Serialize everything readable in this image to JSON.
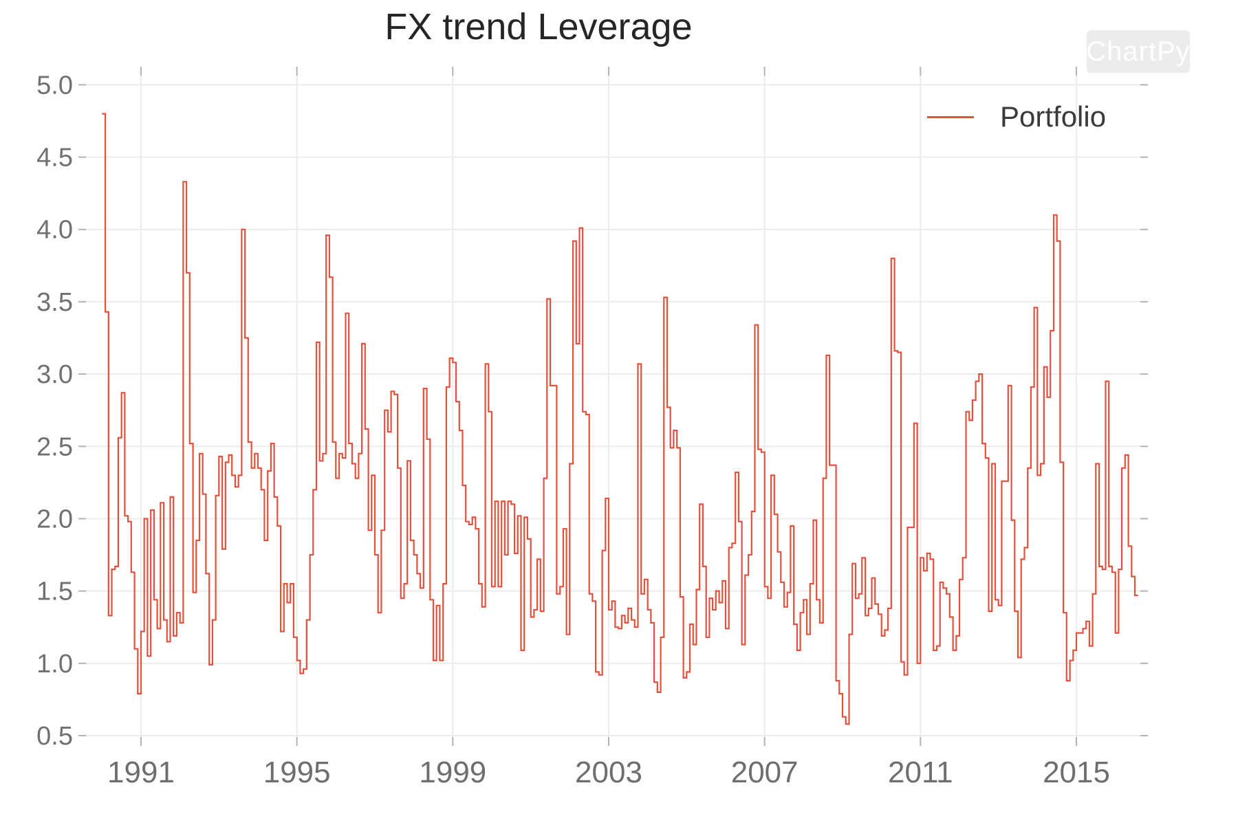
{
  "chart_data": {
    "type": "line",
    "line_style": "step-post",
    "title": "FX trend Leverage",
    "watermark": "ChartPy",
    "grid": true,
    "legend": {
      "position": "top-right",
      "label": "Portfolio"
    },
    "theme": {
      "background": "#ffffff",
      "line_color": "#E3503C",
      "grid_color": "#ececec",
      "tick_color": "#b3b3b3",
      "ytick_label_color": "#707070",
      "xtick_label_color": "#6e6e6e",
      "title_color": "#262626",
      "legend_text_color": "#3a3a3a",
      "watermark_bg": "#ececec",
      "watermark_text_color": "#ffffff"
    },
    "x_axis": {
      "ticks": [
        1991,
        1995,
        1999,
        2003,
        2007,
        2011,
        2015
      ],
      "tick_labels": [
        "1991",
        "1995",
        "1999",
        "2003",
        "2007",
        "2011",
        "2015"
      ],
      "range_years": [
        1989.59,
        2016.64
      ]
    },
    "y_axis": {
      "ticks": [
        0.5,
        1.0,
        1.5,
        2.0,
        2.5,
        3.0,
        3.5,
        4.0,
        4.5,
        5.0
      ],
      "tick_labels": [
        "0.5",
        "1.0",
        "1.5",
        "2.0",
        "2.5",
        "3.0",
        "3.5",
        "4.0",
        "4.5",
        "5.0"
      ],
      "range": [
        0.43,
        5.06
      ]
    },
    "series": [
      {
        "name": "Portfolio",
        "color": "#E3503C",
        "start_year": 1990.0,
        "interval_years": 0.0833333,
        "values": [
          4.8,
          3.43,
          1.33,
          1.65,
          1.67,
          2.56,
          2.87,
          2.02,
          1.98,
          1.63,
          1.1,
          0.79,
          1.22,
          2.0,
          1.05,
          2.06,
          1.44,
          1.24,
          2.11,
          1.3,
          1.15,
          2.15,
          1.19,
          1.35,
          1.28,
          4.33,
          3.7,
          2.52,
          1.49,
          1.85,
          2.45,
          2.17,
          1.62,
          0.99,
          1.3,
          2.16,
          2.43,
          1.79,
          2.39,
          2.44,
          2.3,
          2.22,
          2.3,
          4.0,
          3.25,
          2.53,
          2.35,
          2.45,
          2.35,
          2.2,
          1.85,
          2.33,
          2.52,
          2.15,
          1.95,
          1.22,
          1.55,
          1.42,
          1.55,
          1.18,
          1.02,
          0.93,
          0.96,
          1.3,
          1.75,
          2.2,
          3.22,
          2.4,
          2.45,
          3.96,
          3.67,
          2.53,
          2.28,
          2.45,
          2.42,
          3.42,
          2.52,
          2.38,
          2.28,
          2.45,
          3.21,
          2.62,
          1.92,
          2.3,
          1.75,
          1.35,
          1.92,
          2.75,
          2.6,
          2.88,
          2.86,
          2.35,
          1.45,
          1.55,
          2.4,
          1.85,
          1.75,
          1.62,
          1.52,
          2.9,
          2.55,
          1.44,
          1.02,
          1.4,
          1.02,
          1.55,
          2.91,
          3.11,
          3.08,
          2.81,
          2.61,
          2.23,
          1.98,
          1.96,
          2.01,
          1.93,
          1.55,
          1.39,
          3.07,
          2.74,
          1.53,
          2.12,
          1.53,
          2.12,
          1.75,
          2.12,
          2.1,
          1.76,
          2.02,
          1.09,
          2.01,
          1.86,
          1.32,
          1.37,
          1.72,
          1.36,
          2.28,
          3.52,
          2.92,
          2.92,
          1.48,
          1.53,
          1.93,
          1.2,
          2.38,
          3.92,
          3.21,
          4.01,
          2.74,
          2.72,
          1.48,
          1.43,
          0.94,
          0.92,
          1.78,
          2.14,
          1.37,
          1.43,
          1.25,
          1.24,
          1.33,
          1.28,
          1.38,
          1.3,
          1.25,
          3.07,
          1.48,
          1.58,
          1.37,
          1.28,
          0.87,
          0.8,
          1.18,
          3.53,
          2.77,
          2.49,
          2.61,
          2.49,
          1.46,
          0.9,
          0.94,
          1.27,
          1.13,
          1.51,
          2.1,
          1.67,
          1.18,
          1.45,
          1.37,
          1.5,
          1.42,
          1.57,
          1.24,
          1.8,
          1.83,
          2.32,
          1.98,
          1.13,
          1.61,
          1.75,
          2.05,
          3.34,
          2.48,
          2.46,
          1.53,
          1.45,
          2.3,
          2.03,
          1.77,
          1.56,
          1.39,
          1.49,
          1.95,
          1.27,
          1.09,
          1.35,
          1.44,
          1.2,
          1.55,
          1.99,
          1.44,
          1.28,
          2.28,
          3.13,
          2.37,
          2.37,
          0.88,
          0.79,
          0.63,
          0.58,
          1.2,
          1.69,
          1.45,
          1.48,
          1.73,
          1.33,
          1.38,
          1.59,
          1.41,
          1.34,
          1.19,
          1.23,
          1.38,
          3.8,
          3.16,
          3.15,
          1.01,
          0.92,
          1.94,
          1.94,
          2.66,
          1.0,
          1.73,
          1.64,
          1.76,
          1.72,
          1.09,
          1.12,
          1.56,
          1.52,
          1.48,
          1.32,
          1.09,
          1.19,
          1.58,
          1.73,
          2.74,
          2.68,
          2.82,
          2.95,
          3.0,
          2.52,
          2.42,
          1.36,
          2.38,
          1.44,
          1.4,
          2.26,
          2.26,
          2.92,
          1.99,
          1.36,
          1.04,
          1.72,
          1.8,
          2.35,
          2.91,
          3.46,
          2.3,
          2.38,
          3.05,
          2.84,
          3.3,
          4.1,
          3.92,
          2.39,
          1.35,
          0.88,
          1.02,
          1.09,
          1.21,
          1.21,
          1.24,
          1.29,
          1.12,
          1.48,
          2.38,
          1.67,
          1.65,
          2.95,
          1.67,
          1.63,
          1.21,
          1.65,
          2.35,
          2.44,
          1.81,
          1.6,
          1.47
        ]
      }
    ]
  }
}
